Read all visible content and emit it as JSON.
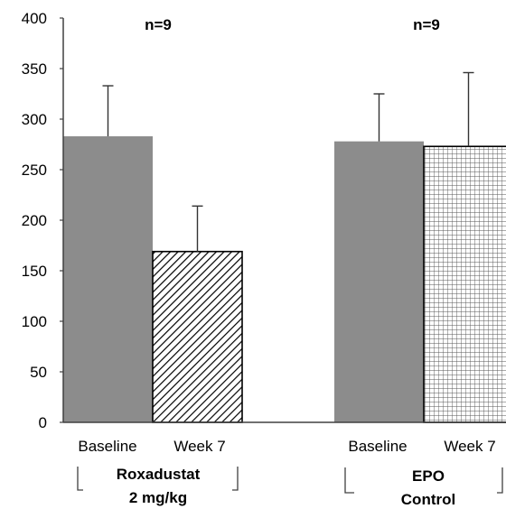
{
  "chart_data": {
    "type": "bar",
    "ylim": [
      0,
      400
    ],
    "yticks": [
      0,
      50,
      100,
      150,
      200,
      250,
      300,
      350,
      400
    ],
    "groups": [
      {
        "name_line1": "Roxadustat",
        "name_line2": "2 mg/kg",
        "n_label": "n=9",
        "bars": [
          {
            "label": "Baseline",
            "value": 283,
            "error": 50,
            "fill": "solid"
          },
          {
            "label": "Week 7",
            "value": 169,
            "error": 45,
            "fill": "diagonal"
          }
        ]
      },
      {
        "name_line1": "EPO",
        "name_line2": "Control",
        "n_label": "n=9",
        "bars": [
          {
            "label": "Baseline",
            "value": 278,
            "error": 47,
            "fill": "solid"
          },
          {
            "label": "Week 7",
            "value": 273,
            "error": 73,
            "fill": "grid"
          }
        ]
      }
    ],
    "colors": {
      "solid_bar": "#8c8c8c",
      "axis": "#404040",
      "text": "#000000"
    },
    "grid": false,
    "legend": "none"
  }
}
